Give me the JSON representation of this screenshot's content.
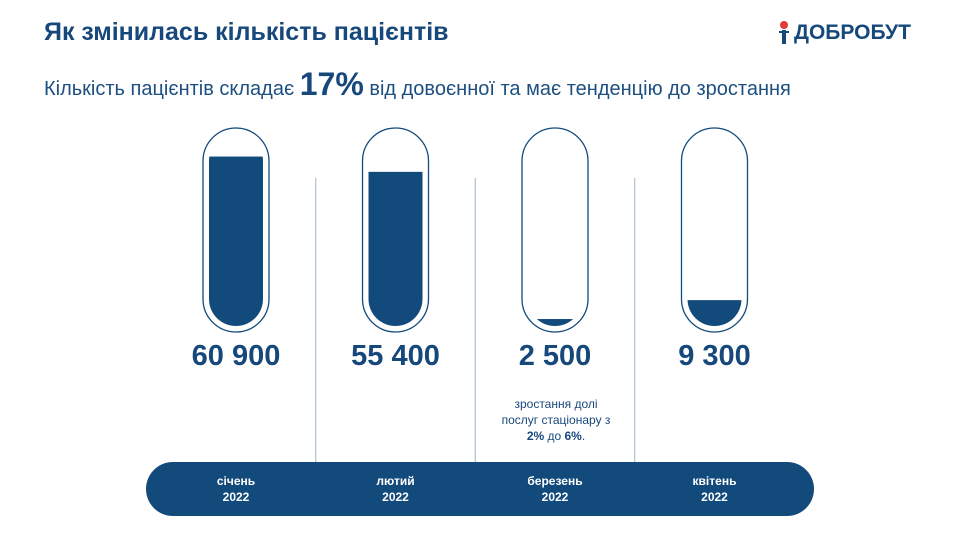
{
  "logo": "ДОБРОБУТ",
  "chart_data": {
    "type": "tube",
    "title": "Як змінилась кількість пацієнтів",
    "subtitle": [
      "Кількість пацієнтів складає",
      "17%",
      "від довоєнної та має тенденцію до зростання"
    ],
    "annotation": [
      "зростання долі послуг стаціонару з ",
      "2%",
      " до ",
      "6%",
      "."
    ],
    "categories": [
      "січень 2022",
      "лютий 2022",
      "березень 2022",
      "квітень 2022"
    ],
    "values": [
      60900,
      55400,
      2500,
      9300
    ],
    "value_labels": [
      "60 900",
      "55 400",
      "2 500",
      "9 300"
    ],
    "color": "#134a7c",
    "ylim": [
      0,
      69000
    ]
  }
}
